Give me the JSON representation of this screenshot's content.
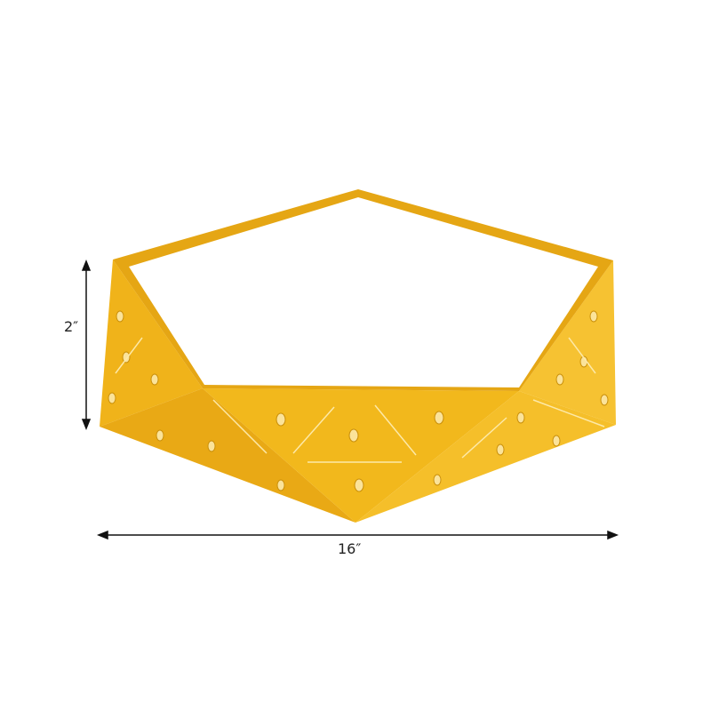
{
  "product": {
    "colors": {
      "body": "#f2b81c",
      "shade": "#e0a212",
      "light": "#f7c93a",
      "inner": "#ffffff"
    }
  },
  "dimensions": {
    "height_label": "2″",
    "width_label": "16″"
  }
}
